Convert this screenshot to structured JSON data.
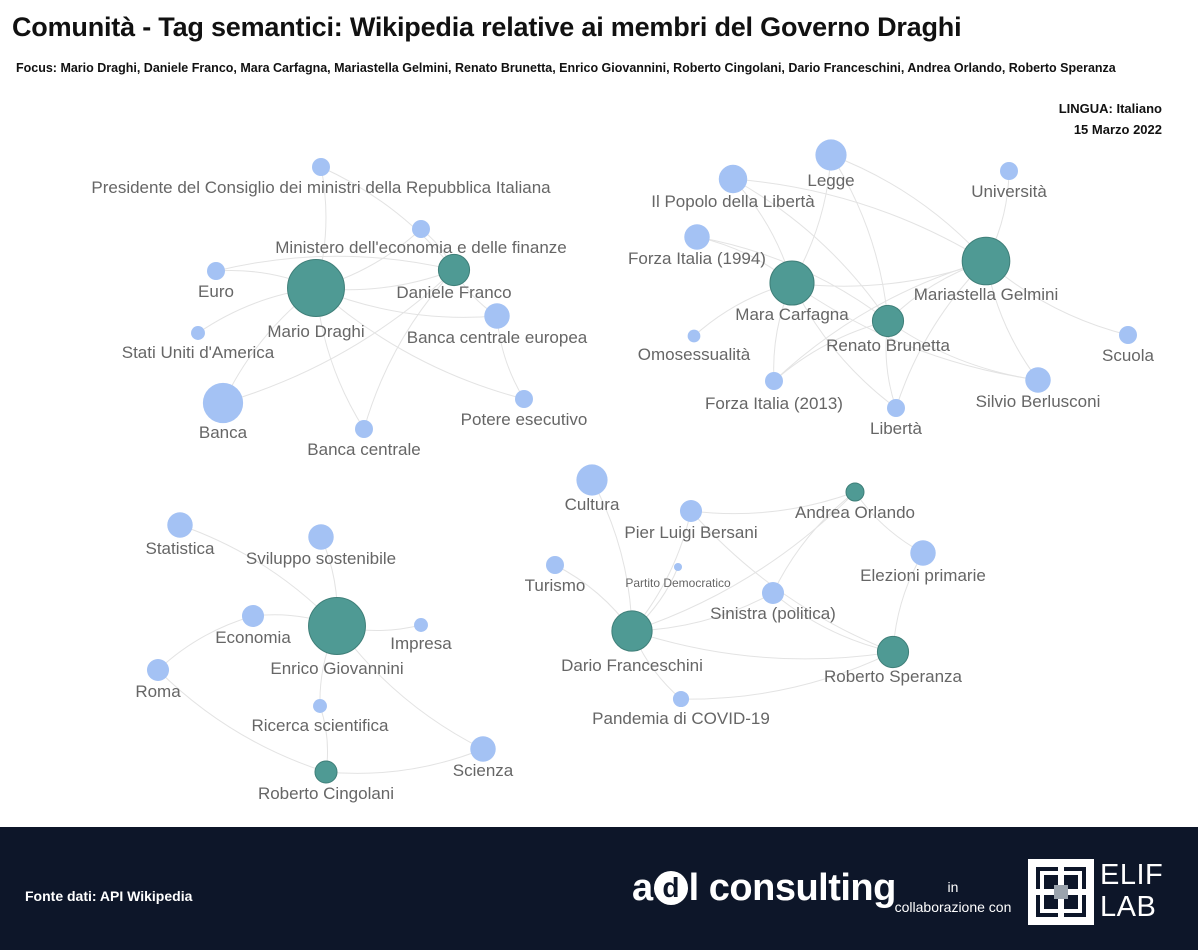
{
  "header": {
    "title": "Comunità - Tag semantici: Wikipedia relative ai membri del Governo Draghi",
    "focus": "Focus: Mario Draghi, Daniele Franco, Mara Carfagna, Mariastella Gelmini, Renato Brunetta, Enrico Giovannini, Roberto Cingolani, Dario Franceschini, Andrea Orlando, Roberto Speranza",
    "language": "LINGUA: Italiano",
    "date": "15 Marzo 2022"
  },
  "colors": {
    "member": "#4f9a94",
    "topic": "#a4c2f4",
    "edge": "#e3e3e3",
    "label": "#666666",
    "footer": "#0d1629"
  },
  "network": {
    "nodes": [
      {
        "id": "mario-draghi",
        "label": "Mario Draghi",
        "kind": "member",
        "weight": 10
      },
      {
        "id": "daniele-franco",
        "label": "Daniele Franco",
        "kind": "member",
        "weight": 3
      },
      {
        "id": "presidente-consiglio",
        "label": "Presidente del Consiglio dei ministri della Repubblica Italiana",
        "kind": "topic",
        "weight": 1
      },
      {
        "id": "ministero-economia",
        "label": "Ministero dell'economia e delle finanze",
        "kind": "topic",
        "weight": 1
      },
      {
        "id": "euro",
        "label": "Euro",
        "kind": "topic",
        "weight": 1
      },
      {
        "id": "stati-uniti",
        "label": "Stati Uniti d'America",
        "kind": "topic",
        "weight": 0.6
      },
      {
        "id": "banca",
        "label": "Banca",
        "kind": "topic",
        "weight": 5
      },
      {
        "id": "banca-centrale",
        "label": "Banca centrale",
        "kind": "topic",
        "weight": 1
      },
      {
        "id": "bce",
        "label": "Banca centrale europea",
        "kind": "topic",
        "weight": 2
      },
      {
        "id": "potere-esecutivo",
        "label": "Potere esecutivo",
        "kind": "topic",
        "weight": 1
      },
      {
        "id": "mara-carfagna",
        "label": "Mara Carfagna",
        "kind": "member",
        "weight": 6
      },
      {
        "id": "mariastella-gelmini",
        "label": "Mariastella Gelmini",
        "kind": "member",
        "weight": 7
      },
      {
        "id": "renato-brunetta",
        "label": "Renato Brunetta",
        "kind": "member",
        "weight": 3
      },
      {
        "id": "legge",
        "label": "Legge",
        "kind": "topic",
        "weight": 3
      },
      {
        "id": "pdl",
        "label": "Il Popolo della Libertà",
        "kind": "topic",
        "weight": 2.5
      },
      {
        "id": "universita",
        "label": "Università",
        "kind": "topic",
        "weight": 1
      },
      {
        "id": "forza-italia-1994",
        "label": "Forza Italia (1994)",
        "kind": "topic",
        "weight": 2
      },
      {
        "id": "omosessualita",
        "label": "Omosessualità",
        "kind": "topic",
        "weight": 0.5
      },
      {
        "id": "forza-italia-2013",
        "label": "Forza Italia (2013)",
        "kind": "topic",
        "weight": 1
      },
      {
        "id": "liberta",
        "label": "Libertà",
        "kind": "topic",
        "weight": 1
      },
      {
        "id": "silvio-berlusconi",
        "label": "Silvio Berlusconi",
        "kind": "topic",
        "weight": 2
      },
      {
        "id": "scuola",
        "label": "Scuola",
        "kind": "topic",
        "weight": 1
      },
      {
        "id": "enrico-giovannini",
        "label": "Enrico Giovannini",
        "kind": "member",
        "weight": 10
      },
      {
        "id": "roberto-cingolani",
        "label": "Roberto Cingolani",
        "kind": "member",
        "weight": 1.5
      },
      {
        "id": "statistica",
        "label": "Statistica",
        "kind": "topic",
        "weight": 2
      },
      {
        "id": "sviluppo-sostenibile",
        "label": "Sviluppo sostenibile",
        "kind": "topic",
        "weight": 2
      },
      {
        "id": "economia",
        "label": "Economia",
        "kind": "topic",
        "weight": 1.5
      },
      {
        "id": "impresa",
        "label": "Impresa",
        "kind": "topic",
        "weight": 0.6
      },
      {
        "id": "roma",
        "label": "Roma",
        "kind": "topic",
        "weight": 1.5
      },
      {
        "id": "ricerca-scientifica",
        "label": "Ricerca scientifica",
        "kind": "topic",
        "weight": 0.6
      },
      {
        "id": "scienza",
        "label": "Scienza",
        "kind": "topic",
        "weight": 2
      },
      {
        "id": "dario-franceschini",
        "label": "Dario Franceschini",
        "kind": "member",
        "weight": 5
      },
      {
        "id": "andrea-orlando",
        "label": "Andrea Orlando",
        "kind": "member",
        "weight": 1
      },
      {
        "id": "roberto-speranza",
        "label": "Roberto Speranza",
        "kind": "member",
        "weight": 3
      },
      {
        "id": "cultura",
        "label": "Cultura",
        "kind": "topic",
        "weight": 3
      },
      {
        "id": "pier-luigi-bersani",
        "label": "Pier Luigi Bersani",
        "kind": "topic",
        "weight": 1.5
      },
      {
        "id": "partito-democratico",
        "label": "Partito Democratico",
        "kind": "topic",
        "weight": 0.2
      },
      {
        "id": "turismo",
        "label": "Turismo",
        "kind": "topic",
        "weight": 1
      },
      {
        "id": "elezioni-primarie",
        "label": "Elezioni primarie",
        "kind": "topic",
        "weight": 2
      },
      {
        "id": "sinistra-politica",
        "label": "Sinistra (politica)",
        "kind": "topic",
        "weight": 1.5
      },
      {
        "id": "pandemia-covid",
        "label": "Pandemia di COVID-19",
        "kind": "topic",
        "weight": 0.8
      }
    ],
    "edges": [
      [
        "mario-draghi",
        "presidente-consiglio"
      ],
      [
        "mario-draghi",
        "ministero-economia"
      ],
      [
        "mario-draghi",
        "euro"
      ],
      [
        "mario-draghi",
        "stati-uniti"
      ],
      [
        "mario-draghi",
        "banca"
      ],
      [
        "mario-draghi",
        "banca-centrale"
      ],
      [
        "mario-draghi",
        "bce"
      ],
      [
        "mario-draghi",
        "potere-esecutivo"
      ],
      [
        "mario-draghi",
        "daniele-franco"
      ],
      [
        "daniele-franco",
        "ministero-economia"
      ],
      [
        "daniele-franco",
        "presidente-consiglio"
      ],
      [
        "daniele-franco",
        "banca-centrale"
      ],
      [
        "daniele-franco",
        "bce"
      ],
      [
        "daniele-franco",
        "euro"
      ],
      [
        "bce",
        "potere-esecutivo"
      ],
      [
        "banca",
        "daniele-franco"
      ],
      [
        "mara-carfagna",
        "legge"
      ],
      [
        "mara-carfagna",
        "pdl"
      ],
      [
        "mara-carfagna",
        "forza-italia-1994"
      ],
      [
        "mara-carfagna",
        "omosessualita"
      ],
      [
        "mara-carfagna",
        "forza-italia-2013"
      ],
      [
        "mara-carfagna",
        "silvio-berlusconi"
      ],
      [
        "mara-carfagna",
        "liberta"
      ],
      [
        "mara-carfagna",
        "mariastella-gelmini"
      ],
      [
        "mariastella-gelmini",
        "legge"
      ],
      [
        "mariastella-gelmini",
        "universita"
      ],
      [
        "mariastella-gelmini",
        "scuola"
      ],
      [
        "mariastella-gelmini",
        "pdl"
      ],
      [
        "mariastella-gelmini",
        "renato-brunetta"
      ],
      [
        "mariastella-gelmini",
        "silvio-berlusconi"
      ],
      [
        "mariastella-gelmini",
        "forza-italia-2013"
      ],
      [
        "mariastella-gelmini",
        "liberta"
      ],
      [
        "renato-brunetta",
        "legge"
      ],
      [
        "renato-brunetta",
        "pdl"
      ],
      [
        "renato-brunetta",
        "forza-italia-1994"
      ],
      [
        "renato-brunetta",
        "forza-italia-2013"
      ],
      [
        "renato-brunetta",
        "liberta"
      ],
      [
        "renato-brunetta",
        "silvio-berlusconi"
      ],
      [
        "enrico-giovannini",
        "statistica"
      ],
      [
        "enrico-giovannini",
        "sviluppo-sostenibile"
      ],
      [
        "enrico-giovannini",
        "economia"
      ],
      [
        "enrico-giovannini",
        "impresa"
      ],
      [
        "enrico-giovannini",
        "ricerca-scientifica"
      ],
      [
        "enrico-giovannini",
        "scienza"
      ],
      [
        "economia",
        "roma"
      ],
      [
        "roma",
        "roberto-cingolani"
      ],
      [
        "roberto-cingolani",
        "scienza"
      ],
      [
        "roberto-cingolani",
        "ricerca-scientifica"
      ],
      [
        "dario-franceschini",
        "cultura"
      ],
      [
        "dario-franceschini",
        "turismo"
      ],
      [
        "dario-franceschini",
        "pier-luigi-bersani"
      ],
      [
        "dario-franceschini",
        "sinistra-politica"
      ],
      [
        "dario-franceschini",
        "partito-democratico"
      ],
      [
        "dario-franceschini",
        "pandemia-covid"
      ],
      [
        "dario-franceschini",
        "andrea-orlando"
      ],
      [
        "dario-franceschini",
        "roberto-speranza"
      ],
      [
        "pier-luigi-bersani",
        "andrea-orlando"
      ],
      [
        "pier-luigi-bersani",
        "roberto-speranza"
      ],
      [
        "andrea-orlando",
        "sinistra-politica"
      ],
      [
        "andrea-orlando",
        "elezioni-primarie"
      ],
      [
        "elezioni-primarie",
        "roberto-speranza"
      ],
      [
        "sinistra-politica",
        "roberto-speranza"
      ],
      [
        "pandemia-covid",
        "roberto-speranza"
      ]
    ]
  },
  "footer": {
    "source": "Fonte dati:  API Wikipedia",
    "logo_a": "a",
    "logo_d": "d",
    "logo_rest": "l consulting",
    "collab_in": "in",
    "collab_text": "collaborazione con",
    "elif_line1": "ELIF",
    "elif_line2": "LAB"
  }
}
